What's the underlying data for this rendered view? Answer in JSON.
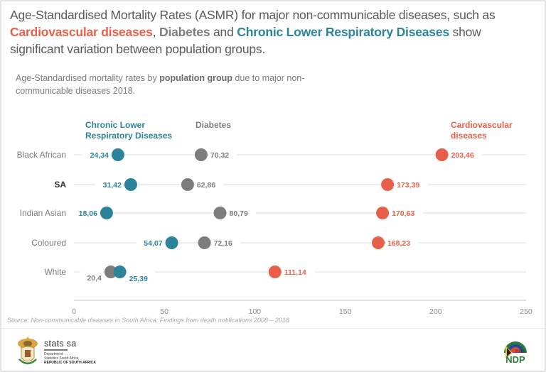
{
  "headline": {
    "part1": "Age-Standardised Mortality Rates (ASMR) for major non-communicable diseases, such as ",
    "cvd": "Cardiovascular diseases",
    "sep1": ", ",
    "diabetes": "Diabetes",
    "and": " and ",
    "clrd": "Chronic Lower Respiratory Diseases",
    "part2": " show significant variation between population groups."
  },
  "subtitle": {
    "pre": "Age-Standardised mortality rates by ",
    "bold": "population group",
    "post": " due to major non-communicable diseases 2018."
  },
  "source": "Source: Non-communicable diseases in South Africa: Findings from death notifications 2008 – 2018",
  "footer": {
    "org_name": "stats sa",
    "dept_line1": "Department:",
    "dept_line2": "Statistics South Africa",
    "dept_line3": "REPUBLIC OF SOUTH AFRICA",
    "crest_icon": "coat-of-arms-icon",
    "ndp_icon": "ndp-2030-logo",
    "ndp_label": "NDP",
    "ndp_year": "2030"
  },
  "chart_data": {
    "type": "scatter",
    "subtype": "dot-plot",
    "title": "Age-Standardised mortality rates by population group due to major non-communicable diseases 2018",
    "xlabel": "",
    "ylabel": "",
    "xlim": [
      0,
      250
    ],
    "xticks": [
      0,
      50,
      100,
      150,
      200,
      250
    ],
    "grid": false,
    "legend": "inline-top",
    "categories": [
      "Black African",
      "SA",
      "Indian Asian",
      "Coloured",
      "White"
    ],
    "bold_category": "SA",
    "series": [
      {
        "name": "Chronic Lower Respiratory Diseases",
        "legend_lines": [
          "Chronic Lower",
          "Respiratory Diseases"
        ],
        "color": "#2b8499",
        "values": [
          24.34,
          31.42,
          18.06,
          54.07,
          25.39
        ],
        "labels": [
          "24,34",
          "31,42",
          "18,06",
          "54,07",
          "25,39"
        ],
        "label_side": [
          "left",
          "left",
          "left",
          "left",
          "right"
        ]
      },
      {
        "name": "Diabetes",
        "legend_lines": [
          "Diabetes"
        ],
        "color": "#7d7d7d",
        "values": [
          70.32,
          62.86,
          80.79,
          72.16,
          20.4
        ],
        "labels": [
          "70,32",
          "62,86",
          "80,79",
          "72,16",
          "20,4"
        ],
        "label_side": [
          "right",
          "right",
          "right",
          "right",
          "left"
        ]
      },
      {
        "name": "Cardiovascular diseases",
        "legend_lines": [
          "Cardiovascular",
          "diseases"
        ],
        "color": "#e9604a",
        "values": [
          203.46,
          173.39,
          170.63,
          168.23,
          111.14
        ],
        "labels": [
          "203,46",
          "173,39",
          "170,63",
          "168,23",
          "111,14"
        ],
        "label_side": [
          "right",
          "right",
          "right",
          "right",
          "right"
        ]
      }
    ]
  }
}
